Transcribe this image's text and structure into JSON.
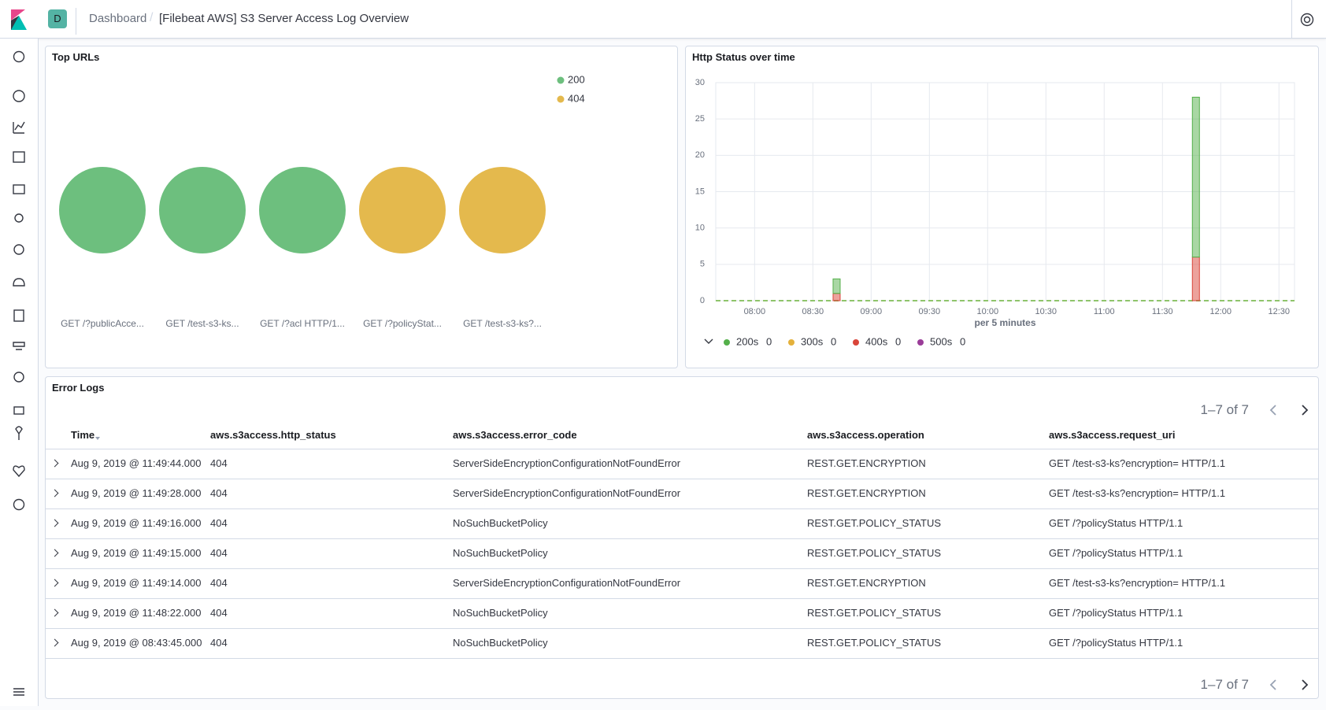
{
  "header": {
    "avatar": "D",
    "breadcrumbs": [
      "Dashboard",
      "[Filebeat AWS] S3 Server Access Log Overview"
    ]
  },
  "chart_data": [
    {
      "type": "bubble",
      "title": "Top URLs",
      "categories": [
        "GET /?publicAcce...",
        "GET /test-s3-ks...",
        "GET /?acl HTTP/1...",
        "GET /?policyStat...",
        "GET /test-s3-ks?..."
      ],
      "series": [
        {
          "name": "200",
          "color": "#6dbf7e",
          "values": [
            1,
            1,
            1,
            null,
            null
          ]
        },
        {
          "name": "404",
          "color": "#e4b94d",
          "values": [
            null,
            null,
            null,
            1,
            1
          ]
        }
      ]
    },
    {
      "type": "bar",
      "stacked": true,
      "title": "Http Status over time",
      "xlabel": "per 5 minutes",
      "x": [
        "08:40",
        "11:45"
      ],
      "xlim": [
        "07:40",
        "12:38"
      ],
      "xticks": [
        "08:00",
        "08:30",
        "09:00",
        "09:30",
        "10:00",
        "10:30",
        "11:00",
        "11:30",
        "12:00",
        "12:30"
      ],
      "ylim": [
        0,
        30
      ],
      "yticks": [
        0,
        5,
        10,
        15,
        20,
        25,
        30
      ],
      "grid": true,
      "series": [
        {
          "name": "200s",
          "color": "#54b04a",
          "values": [
            2,
            22
          ],
          "legend_value": 0
        },
        {
          "name": "300s",
          "color": "#e4b13b",
          "values": [
            0,
            0
          ],
          "legend_value": 0
        },
        {
          "name": "400s",
          "color": "#d9453a",
          "values": [
            1,
            6
          ],
          "legend_value": 0
        },
        {
          "name": "500s",
          "color": "#9a3c98",
          "values": [
            0,
            0
          ],
          "legend_value": 0
        }
      ]
    }
  ],
  "table": {
    "title": "Error Logs",
    "pagination": "1–7 of 7",
    "columns": [
      "Time",
      "aws.s3access.http_status",
      "aws.s3access.error_code",
      "aws.s3access.operation",
      "aws.s3access.request_uri"
    ],
    "rows": [
      [
        "Aug 9, 2019 @ 11:49:44.000",
        404,
        "ServerSideEncryptionConfigurationNotFoundError",
        "REST.GET.ENCRYPTION",
        "GET /test-s3-ks?encryption= HTTP/1.1"
      ],
      [
        "Aug 9, 2019 @ 11:49:28.000",
        404,
        "ServerSideEncryptionConfigurationNotFoundError",
        "REST.GET.ENCRYPTION",
        "GET /test-s3-ks?encryption= HTTP/1.1"
      ],
      [
        "Aug 9, 2019 @ 11:49:16.000",
        404,
        "NoSuchBucketPolicy",
        "REST.GET.POLICY_STATUS",
        "GET /?policyStatus HTTP/1.1"
      ],
      [
        "Aug 9, 2019 @ 11:49:15.000",
        404,
        "NoSuchBucketPolicy",
        "REST.GET.POLICY_STATUS",
        "GET /?policyStatus HTTP/1.1"
      ],
      [
        "Aug 9, 2019 @ 11:49:14.000",
        404,
        "ServerSideEncryptionConfigurationNotFoundError",
        "REST.GET.ENCRYPTION",
        "GET /test-s3-ks?encryption= HTTP/1.1"
      ],
      [
        "Aug 9, 2019 @ 11:48:22.000",
        404,
        "NoSuchBucketPolicy",
        "REST.GET.POLICY_STATUS",
        "GET /?policyStatus HTTP/1.1"
      ],
      [
        "Aug 9, 2019 @ 08:43:45.000",
        404,
        "NoSuchBucketPolicy",
        "REST.GET.POLICY_STATUS",
        "GET /?policyStatus HTTP/1.1"
      ]
    ]
  }
}
